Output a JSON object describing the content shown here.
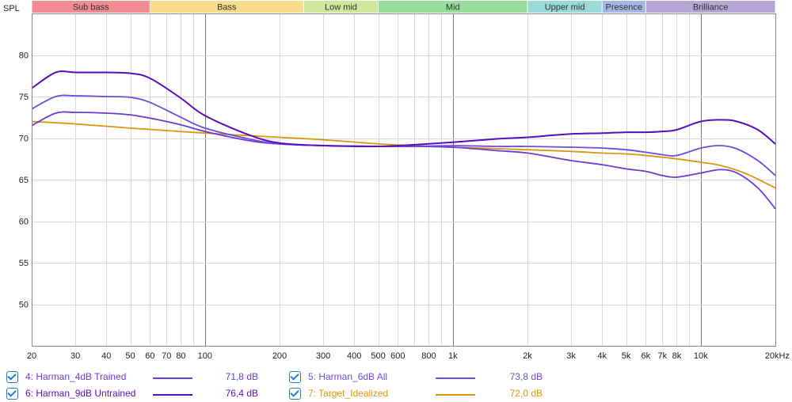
{
  "chart_data": {
    "type": "line",
    "ylabel": "SPL",
    "ylim": [
      45,
      85
    ],
    "xlim": [
      20,
      20000
    ],
    "x_scale": "log",
    "y_ticks": [
      50,
      55,
      60,
      65,
      70,
      75,
      80
    ],
    "x_ticks": [
      {
        "v": 20,
        "label": "20"
      },
      {
        "v": 30,
        "label": "30"
      },
      {
        "v": 40,
        "label": "40"
      },
      {
        "v": 50,
        "label": "50"
      },
      {
        "v": 60,
        "label": "60"
      },
      {
        "v": 70,
        "label": "70"
      },
      {
        "v": 80,
        "label": "80"
      },
      {
        "v": 100,
        "label": "100"
      },
      {
        "v": 200,
        "label": "200"
      },
      {
        "v": 300,
        "label": "300"
      },
      {
        "v": 400,
        "label": "400"
      },
      {
        "v": 500,
        "label": "500"
      },
      {
        "v": 600,
        "label": "600"
      },
      {
        "v": 800,
        "label": "800"
      },
      {
        "v": 1000,
        "label": "1k"
      },
      {
        "v": 2000,
        "label": "2k"
      },
      {
        "v": 3000,
        "label": "3k"
      },
      {
        "v": 4000,
        "label": "4k"
      },
      {
        "v": 5000,
        "label": "5k"
      },
      {
        "v": 6000,
        "label": "6k"
      },
      {
        "v": 7000,
        "label": "7k"
      },
      {
        "v": 8000,
        "label": "8k"
      },
      {
        "v": 10000,
        "label": "10k"
      },
      {
        "v": 20000,
        "label": "20kHz"
      }
    ],
    "major_lines": [
      100,
      1000,
      10000
    ],
    "bands": [
      {
        "label": "Sub bass",
        "from": 20,
        "to": 60,
        "color": "#f08c92"
      },
      {
        "label": "Bass",
        "from": 60,
        "to": 250,
        "color": "#f7dc8c"
      },
      {
        "label": "Low mid",
        "from": 250,
        "to": 500,
        "color": "#cfe89b"
      },
      {
        "label": "Mid",
        "from": 500,
        "to": 2000,
        "color": "#99dd9c"
      },
      {
        "label": "Upper mid",
        "from": 2000,
        "to": 4000,
        "color": "#99d9d7"
      },
      {
        "label": "Presence",
        "from": 4000,
        "to": 6000,
        "color": "#a4b6e2"
      },
      {
        "label": "Brilliance",
        "from": 6000,
        "to": 20000,
        "color": "#b6a6d6"
      }
    ],
    "series": [
      {
        "name": "4: Harman_4dB Trained",
        "value": "71,8 dB",
        "color": "#6a3bd6",
        "points": [
          [
            20,
            71.5
          ],
          [
            25,
            73
          ],
          [
            30,
            73.1
          ],
          [
            40,
            73
          ],
          [
            50,
            72.8
          ],
          [
            60,
            72.4
          ],
          [
            80,
            71.6
          ],
          [
            100,
            70.8
          ],
          [
            150,
            69.7
          ],
          [
            200,
            69.3
          ],
          [
            300,
            69.1
          ],
          [
            500,
            69
          ],
          [
            700,
            69
          ],
          [
            1000,
            68.9
          ],
          [
            1500,
            68.5
          ],
          [
            2000,
            68.2
          ],
          [
            3000,
            67.3
          ],
          [
            4000,
            66.8
          ],
          [
            5000,
            66.3
          ],
          [
            6000,
            66
          ],
          [
            7000,
            65.5
          ],
          [
            8000,
            65.3
          ],
          [
            10000,
            65.8
          ],
          [
            12000,
            66.2
          ],
          [
            14000,
            65.8
          ],
          [
            17000,
            64
          ],
          [
            20000,
            61.5
          ]
        ]
      },
      {
        "name": "5: Harman_6dB All",
        "value": "73,8 dB",
        "color": "#6f4cd9",
        "points": [
          [
            20,
            73.5
          ],
          [
            25,
            75
          ],
          [
            30,
            75.1
          ],
          [
            40,
            75
          ],
          [
            50,
            74.9
          ],
          [
            60,
            74.3
          ],
          [
            80,
            72.5
          ],
          [
            100,
            71.2
          ],
          [
            150,
            69.9
          ],
          [
            200,
            69.3
          ],
          [
            300,
            69.1
          ],
          [
            500,
            69
          ],
          [
            700,
            69
          ],
          [
            1000,
            69.1
          ],
          [
            1500,
            69
          ],
          [
            2000,
            69
          ],
          [
            3000,
            68.9
          ],
          [
            4000,
            68.8
          ],
          [
            5000,
            68.6
          ],
          [
            6000,
            68.3
          ],
          [
            7000,
            68
          ],
          [
            8000,
            67.9
          ],
          [
            10000,
            68.8
          ],
          [
            12000,
            69.1
          ],
          [
            14000,
            68.7
          ],
          [
            17000,
            67.3
          ],
          [
            20000,
            65.5
          ]
        ]
      },
      {
        "name": "6: Harman_9dB Untrained",
        "value": "76,4 dB",
        "color": "#5a0ebd",
        "points": [
          [
            20,
            76
          ],
          [
            25,
            77.9
          ],
          [
            30,
            77.9
          ],
          [
            40,
            77.9
          ],
          [
            50,
            77.8
          ],
          [
            60,
            77.2
          ],
          [
            80,
            74.8
          ],
          [
            100,
            72.7
          ],
          [
            150,
            70.4
          ],
          [
            200,
            69.4
          ],
          [
            300,
            69.1
          ],
          [
            500,
            69
          ],
          [
            700,
            69.2
          ],
          [
            1000,
            69.5
          ],
          [
            1500,
            69.9
          ],
          [
            2000,
            70.1
          ],
          [
            3000,
            70.5
          ],
          [
            4000,
            70.6
          ],
          [
            5000,
            70.7
          ],
          [
            6000,
            70.7
          ],
          [
            7000,
            70.8
          ],
          [
            8000,
            71
          ],
          [
            10000,
            72
          ],
          [
            12000,
            72.2
          ],
          [
            14000,
            72
          ],
          [
            17000,
            71
          ],
          [
            20000,
            69.3
          ]
        ]
      },
      {
        "name": "7: Target_Idealized",
        "value": "72,0 dB",
        "color": "#d9960f",
        "points": [
          [
            20,
            72
          ],
          [
            30,
            71.7
          ],
          [
            50,
            71.2
          ],
          [
            100,
            70.6
          ],
          [
            200,
            70.1
          ],
          [
            300,
            69.8
          ],
          [
            500,
            69.3
          ],
          [
            700,
            69.1
          ],
          [
            1000,
            68.9
          ],
          [
            2000,
            68.6
          ],
          [
            3000,
            68.4
          ],
          [
            4000,
            68.2
          ],
          [
            5000,
            68.1
          ],
          [
            6000,
            67.9
          ],
          [
            8000,
            67.5
          ],
          [
            10000,
            67.1
          ],
          [
            12000,
            66.7
          ],
          [
            15000,
            65.8
          ],
          [
            20000,
            64
          ]
        ]
      }
    ]
  }
}
